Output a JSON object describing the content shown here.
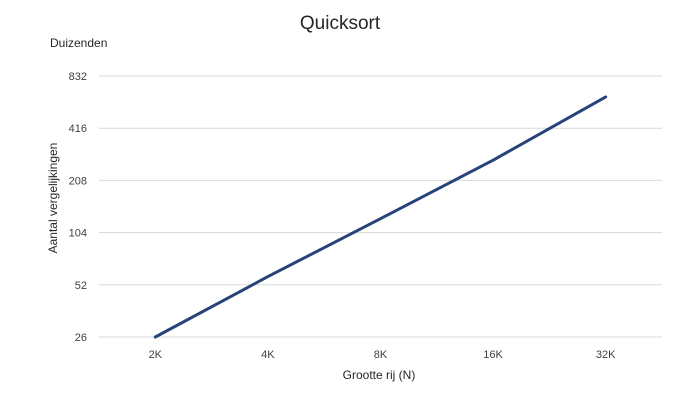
{
  "chart_data": {
    "type": "line",
    "title": "Quicksort",
    "units_label": "Duizenden",
    "xlabel": "Grootte rij (N)",
    "ylabel": "Aantal vergelijkingen",
    "y_scale": "log2",
    "categories": [
      "2K",
      "4K",
      "8K",
      "16K",
      "32K"
    ],
    "y_ticks": [
      26,
      52,
      104,
      208,
      416,
      832
    ],
    "ylim": [
      26,
      832
    ],
    "grid": true,
    "legend": "none",
    "series": [
      {
        "values": [
          26,
          58,
          125,
          272,
          630
        ],
        "color": "#264478"
      }
    ]
  }
}
